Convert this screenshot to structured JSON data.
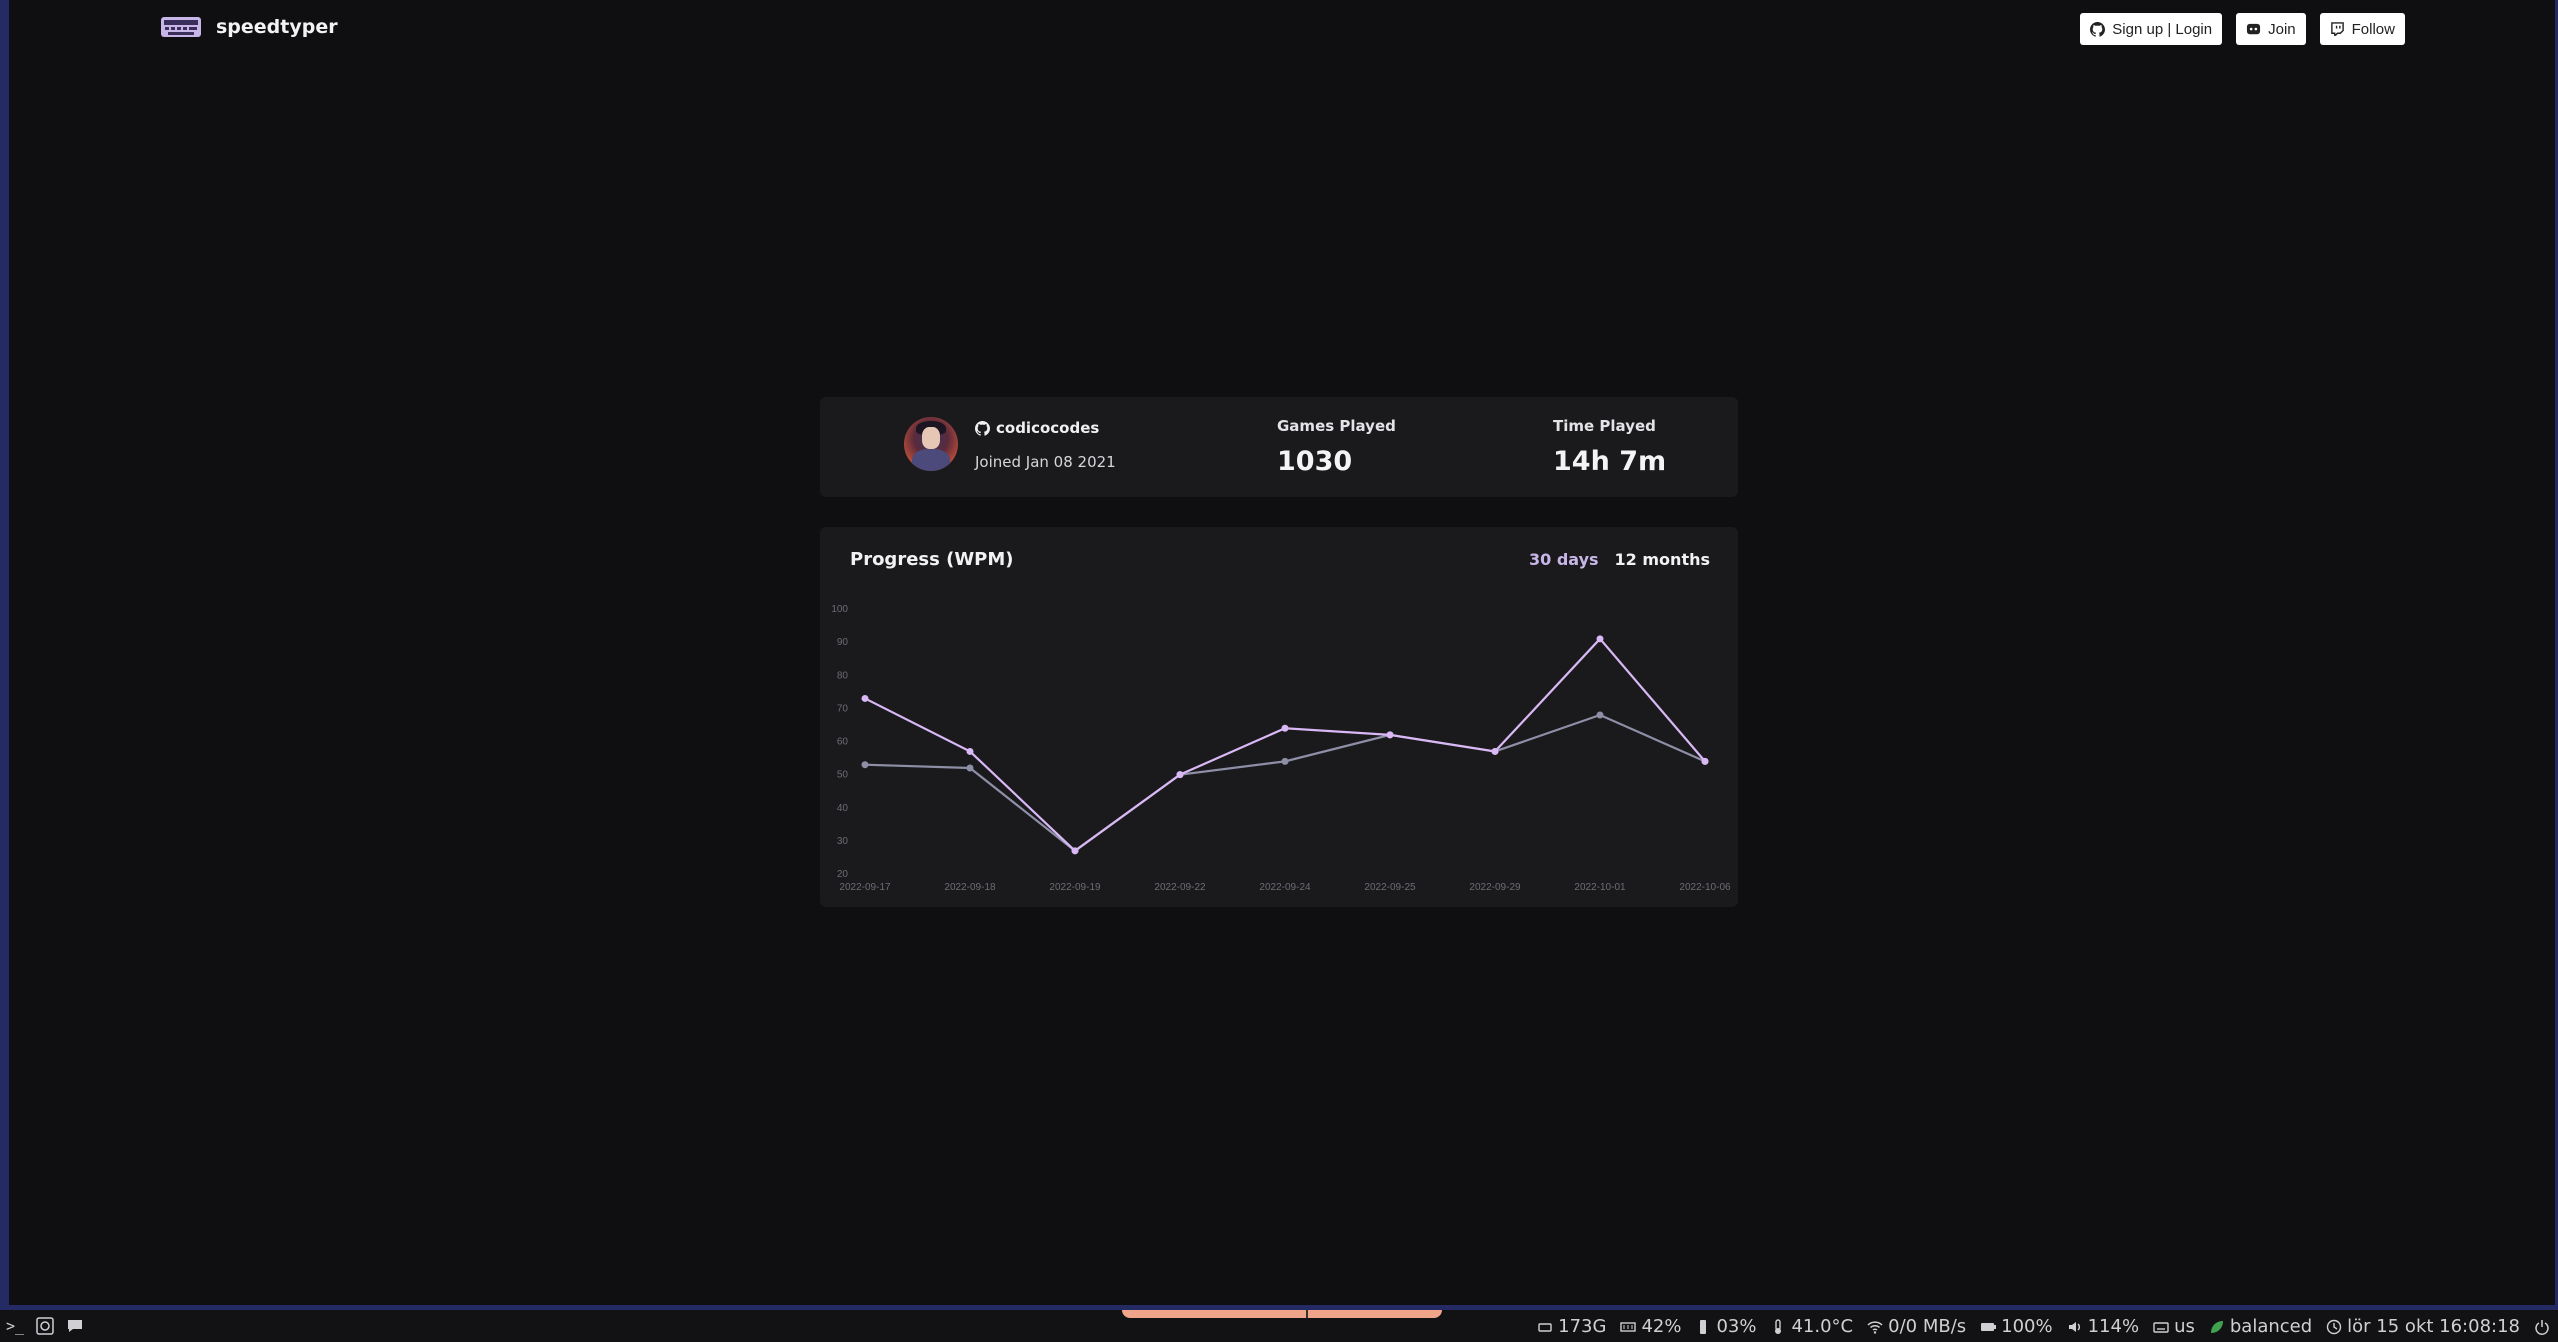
{
  "header": {
    "brand": "speedtyper",
    "buttons": [
      {
        "label": "Sign up | Login",
        "icon": "github-icon"
      },
      {
        "label": "Join",
        "icon": "discord-icon"
      },
      {
        "label": "Follow",
        "icon": "twitch-icon"
      }
    ]
  },
  "profile": {
    "username": "codicocodes",
    "joined": "Joined Jan 08 2021",
    "games_played_label": "Games Played",
    "games_played": "1030",
    "time_played_label": "Time Played",
    "time_played": "14h 7m"
  },
  "progress": {
    "title": "Progress (WPM)",
    "range_options": [
      "30 days",
      "12 months"
    ],
    "active_range": "30 days"
  },
  "chart_data": {
    "type": "line",
    "x": [
      "2022-09-17",
      "2022-09-18",
      "2022-09-19",
      "2022-09-22",
      "2022-09-24",
      "2022-09-25",
      "2022-09-29",
      "2022-10-01",
      "2022-10-06"
    ],
    "yticks": [
      20,
      30,
      40,
      50,
      60,
      70,
      80,
      90,
      100
    ],
    "ylim": [
      20,
      100
    ],
    "grid": false,
    "series": [
      {
        "values": [
          73,
          57,
          27,
          50,
          64,
          62,
          57,
          91,
          54
        ],
        "color": "#d9b8f5"
      },
      {
        "values": [
          53,
          52,
          27,
          50,
          54,
          62,
          57,
          68,
          54
        ],
        "color": "#8e8fa6"
      }
    ]
  },
  "taskbar": {
    "left_icons": [
      "terminal-icon",
      "app-icon",
      "chat-icon"
    ],
    "status": [
      {
        "icon": "disk-icon",
        "text": "173G"
      },
      {
        "icon": "memory-icon",
        "text": "42%"
      },
      {
        "icon": "cpu-icon",
        "text": "03%"
      },
      {
        "icon": "temperature-icon",
        "text": "41.0°C"
      },
      {
        "icon": "wifi-icon",
        "text": "0/0 MB/s"
      },
      {
        "icon": "battery-icon",
        "text": "100%"
      },
      {
        "icon": "volume-icon",
        "text": "114%"
      },
      {
        "icon": "keyboard-icon",
        "text": "us"
      },
      {
        "icon": "leaf-icon",
        "text": "balanced"
      },
      {
        "icon": "clock-icon",
        "text": "lör 15 okt 16:08:18"
      },
      {
        "icon": "power-icon",
        "text": ""
      }
    ]
  },
  "colors": {
    "background": "#0f0f11",
    "card": "#1a1a1d",
    "accent": "#c9b6e8"
  }
}
